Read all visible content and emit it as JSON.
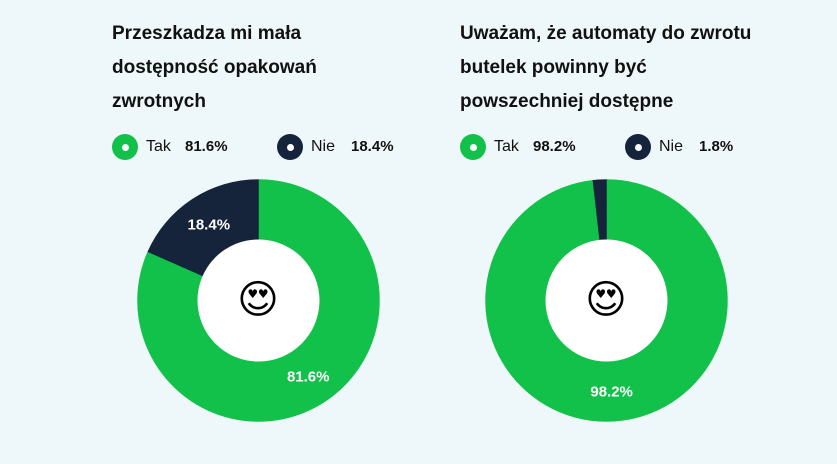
{
  "colors": {
    "background": "#eef7f9",
    "yes": "#12c149",
    "no": "#15243a",
    "text": "#111111"
  },
  "chart_data": [
    {
      "type": "pie",
      "donut": true,
      "title": "Przeszkadza mi mała dostępność opakowań zwrotnych",
      "title_lines": [
        "Przeszkadza mi mała",
        "dostępność opakowań",
        "zwrotnych"
      ],
      "slices": [
        {
          "label": "Tak",
          "value": 81.6,
          "display": "81.6%"
        },
        {
          "label": "Nie",
          "value": 18.4,
          "display": "18.4%"
        }
      ],
      "center_icon": "heart-eyes-emoji",
      "center_glyph": "😍"
    },
    {
      "type": "pie",
      "donut": true,
      "title": "Uważam, że automaty do zwrotu butelek powinny być powszechniej dostępne",
      "title_lines": [
        "Uważam, że automaty do zwrotu",
        "butelek powinny być",
        "powszechniej dostępne"
      ],
      "slices": [
        {
          "label": "Tak",
          "value": 98.2,
          "display": "98.2%"
        },
        {
          "label": "Nie",
          "value": 1.8,
          "display": "1.8%"
        }
      ],
      "center_icon": "heart-eyes-emoji",
      "center_glyph": "😍"
    }
  ]
}
